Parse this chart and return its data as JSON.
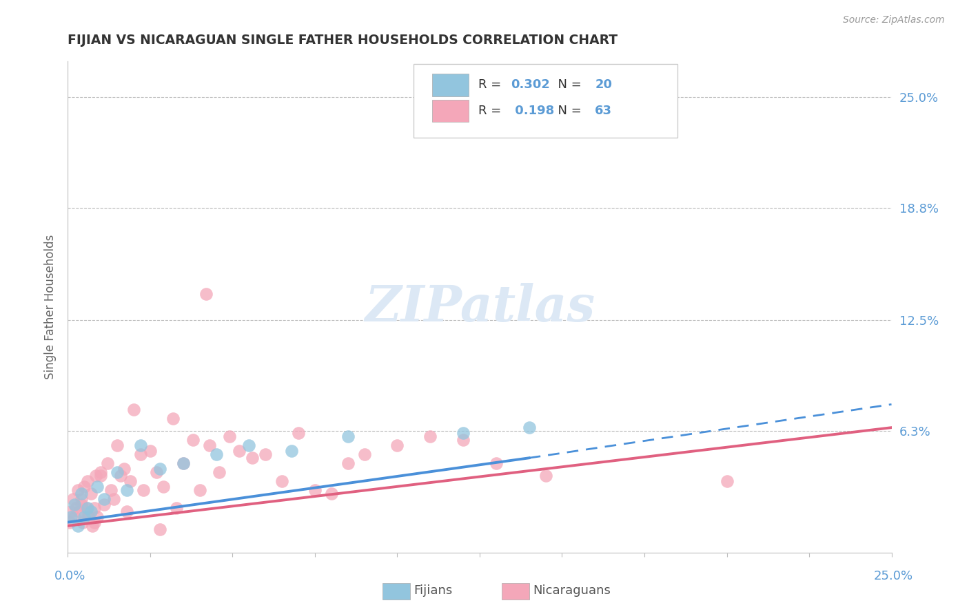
{
  "title": "FIJIAN VS NICARAGUAN SINGLE FATHER HOUSEHOLDS CORRELATION CHART",
  "source_text": "Source: ZipAtlas.com",
  "ylabel": "Single Father Households",
  "ytick_labels": [
    "6.3%",
    "12.5%",
    "18.8%",
    "25.0%"
  ],
  "ytick_values": [
    6.3,
    12.5,
    18.8,
    25.0
  ],
  "xmin": 0.0,
  "xmax": 25.0,
  "ymin": -0.5,
  "ymax": 27.0,
  "fijian_color": "#92C5DE",
  "nicaraguan_color": "#F4A7B9",
  "fijian_line_color": "#4A90D9",
  "nicaraguan_line_color": "#E06080",
  "fijian_R": 0.302,
  "fijian_N": 20,
  "nicaraguan_R": 0.198,
  "nicaraguan_N": 63,
  "fijian_line_solid_end": 14.0,
  "fijian_line_y_at_0": 1.2,
  "fijian_line_y_at_14": 4.8,
  "fijian_line_y_at_25": 7.8,
  "nicaraguan_line_y_at_0": 1.0,
  "nicaraguan_line_y_at_25": 6.5,
  "fijians_x": [
    0.1,
    0.2,
    0.3,
    0.4,
    0.5,
    0.6,
    0.7,
    0.9,
    1.1,
    1.5,
    1.8,
    2.2,
    2.8,
    3.5,
    4.5,
    5.5,
    6.8,
    8.5,
    12.0,
    14.0
  ],
  "fijians_y": [
    1.5,
    2.2,
    1.0,
    2.8,
    1.5,
    2.0,
    1.8,
    3.2,
    2.5,
    4.0,
    3.0,
    5.5,
    4.2,
    4.5,
    5.0,
    5.5,
    5.2,
    6.0,
    6.2,
    6.5
  ],
  "nicaraguans_x": [
    0.05,
    0.1,
    0.15,
    0.2,
    0.25,
    0.3,
    0.35,
    0.4,
    0.45,
    0.5,
    0.55,
    0.6,
    0.65,
    0.7,
    0.75,
    0.8,
    0.85,
    0.9,
    1.0,
    1.1,
    1.2,
    1.3,
    1.5,
    1.6,
    1.7,
    1.9,
    2.0,
    2.2,
    2.5,
    2.7,
    2.9,
    3.2,
    3.5,
    3.8,
    4.0,
    4.3,
    4.6,
    4.9,
    5.2,
    5.6,
    6.0,
    6.5,
    7.0,
    7.5,
    8.0,
    8.5,
    9.0,
    10.0,
    11.0,
    12.0,
    13.0,
    14.5,
    20.0,
    0.4,
    0.6,
    0.8,
    1.0,
    1.4,
    1.8,
    2.3,
    2.8,
    3.3,
    4.2
  ],
  "nicaraguans_y": [
    1.2,
    1.8,
    2.5,
    1.5,
    2.0,
    3.0,
    1.8,
    2.5,
    1.2,
    3.2,
    2.0,
    3.5,
    1.5,
    2.8,
    1.0,
    2.0,
    3.8,
    1.5,
    4.0,
    2.2,
    4.5,
    3.0,
    5.5,
    3.8,
    4.2,
    3.5,
    7.5,
    5.0,
    5.2,
    4.0,
    3.2,
    7.0,
    4.5,
    5.8,
    3.0,
    5.5,
    4.0,
    6.0,
    5.2,
    4.8,
    5.0,
    3.5,
    6.2,
    3.0,
    2.8,
    4.5,
    5.0,
    5.5,
    6.0,
    5.8,
    4.5,
    3.8,
    3.5,
    2.2,
    1.5,
    1.2,
    3.8,
    2.5,
    1.8,
    3.0,
    0.8,
    2.0,
    14.0
  ]
}
